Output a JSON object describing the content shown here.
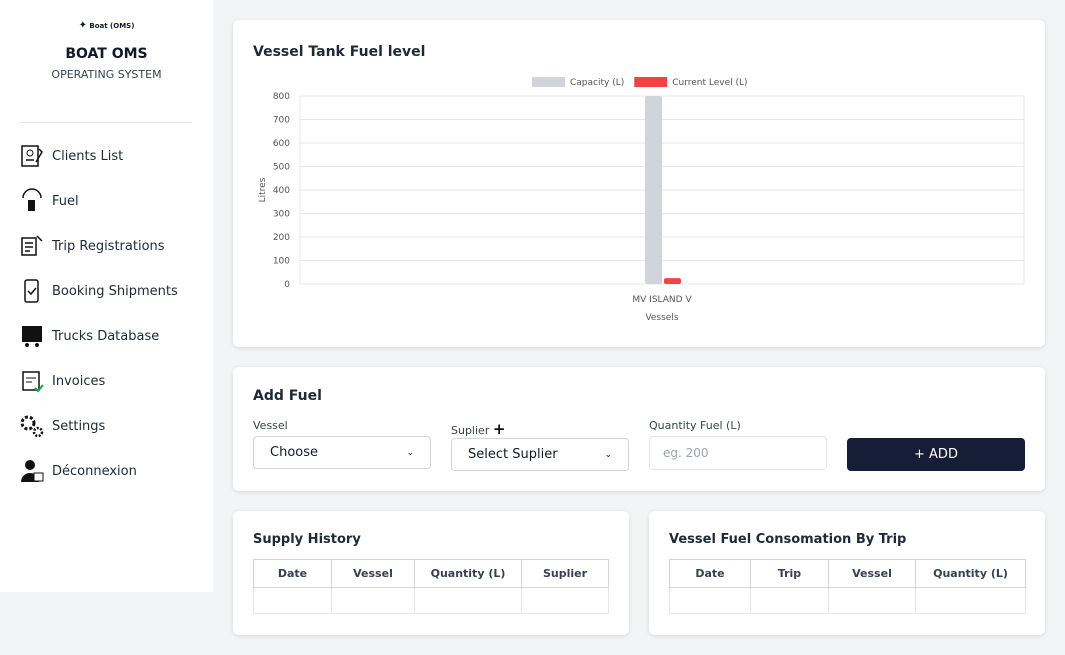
{
  "sidebar": {
    "logo": "Boat (OMS)",
    "title": "BOAT OMS",
    "subtitle": "OPERATING SYSTEM",
    "menu": [
      "Clients List",
      "Fuel",
      "Trip Registrations",
      "Booking Shipments",
      "Trucks Database",
      "Invoices",
      "Settings",
      "Déconnexion"
    ]
  },
  "chart_data": {
    "type": "bar",
    "title": "Vessel Tank Fuel level",
    "categories": [
      "MV ISLAND V"
    ],
    "series": [
      {
        "name": "Capacity (L)",
        "color": "#d1d5db",
        "values": [
          800
        ]
      },
      {
        "name": "Current Level (L)",
        "color": "#ef4444",
        "values": [
          25
        ]
      }
    ],
    "ylim": [
      0,
      800
    ],
    "yticks": [
      0,
      100,
      200,
      300,
      400,
      500,
      600,
      700,
      800
    ],
    "y_label": "Litres",
    "x_label": "Vessels",
    "grid": true,
    "legend": "top"
  },
  "add_fuel": {
    "title": "Add Fuel",
    "vessel_label": "Vessel",
    "vessel_value": "Choose",
    "supplier_label": "Suplier",
    "supplier_add": "+",
    "supplier_value": "Select Suplier",
    "quantity_label": "Quantity Fuel (L)",
    "quantity_placeholder": "eg. 200",
    "button": "+ ADD"
  },
  "supply_history": {
    "title": "Supply History",
    "headers": [
      "Date",
      "Vessel",
      "Quantity (L)",
      "Suplier"
    ]
  },
  "consumption": {
    "title": "Vessel Fuel Consomation By Trip",
    "headers": [
      "Date",
      "Trip",
      "Vessel",
      "Quantity (L)"
    ]
  }
}
